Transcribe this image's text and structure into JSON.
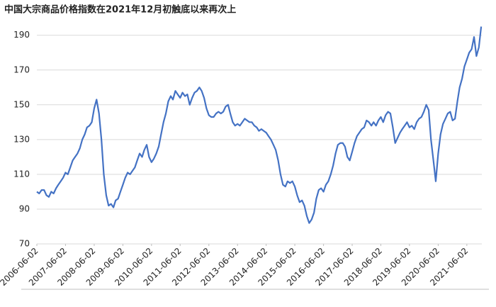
{
  "chart_data": {
    "type": "line",
    "title": "中国大宗商品价格指数在2021年12月初触底以来再次上",
    "x": [
      "2006-06-02",
      "2006-07-02",
      "2006-08-02",
      "2006-09-02",
      "2006-10-02",
      "2006-11-02",
      "2006-12-02",
      "2007-01-02",
      "2007-02-02",
      "2007-03-02",
      "2007-04-02",
      "2007-05-02",
      "2007-06-02",
      "2007-07-02",
      "2007-08-02",
      "2007-09-02",
      "2007-10-02",
      "2007-11-02",
      "2007-12-02",
      "2008-01-02",
      "2008-02-02",
      "2008-03-02",
      "2008-04-02",
      "2008-05-02",
      "2008-06-02",
      "2008-07-02",
      "2008-08-02",
      "2008-09-02",
      "2008-10-02",
      "2008-11-02",
      "2008-12-02",
      "2009-01-02",
      "2009-02-02",
      "2009-03-02",
      "2009-04-02",
      "2009-05-02",
      "2009-06-02",
      "2009-07-02",
      "2009-08-02",
      "2009-09-02",
      "2009-10-02",
      "2009-11-02",
      "2009-12-02",
      "2010-01-02",
      "2010-02-02",
      "2010-03-02",
      "2010-04-02",
      "2010-05-02",
      "2010-06-02",
      "2010-07-02",
      "2010-08-02",
      "2010-09-02",
      "2010-10-02",
      "2010-11-02",
      "2010-12-02",
      "2011-01-02",
      "2011-02-02",
      "2011-03-02",
      "2011-04-02",
      "2011-05-02",
      "2011-06-02",
      "2011-07-02",
      "2011-08-02",
      "2011-09-02",
      "2011-10-02",
      "2011-11-02",
      "2011-12-02",
      "2012-01-02",
      "2012-02-02",
      "2012-03-02",
      "2012-04-02",
      "2012-05-02",
      "2012-06-02",
      "2012-07-02",
      "2012-08-02",
      "2012-09-02",
      "2012-10-02",
      "2012-11-02",
      "2012-12-02",
      "2013-01-02",
      "2013-02-02",
      "2013-03-02",
      "2013-04-02",
      "2013-05-02",
      "2013-06-02",
      "2013-07-02",
      "2013-08-02",
      "2013-09-02",
      "2013-10-02",
      "2013-11-02",
      "2013-12-02",
      "2014-01-02",
      "2014-02-02",
      "2014-03-02",
      "2014-04-02",
      "2014-05-02",
      "2014-06-02",
      "2014-07-02",
      "2014-08-02",
      "2014-09-02",
      "2014-10-02",
      "2014-11-02",
      "2014-12-02",
      "2015-01-02",
      "2015-02-02",
      "2015-03-02",
      "2015-04-02",
      "2015-05-02",
      "2015-06-02",
      "2015-07-02",
      "2015-08-02",
      "2015-09-02",
      "2015-10-02",
      "2015-11-02",
      "2015-12-02",
      "2016-01-02",
      "2016-02-02",
      "2016-03-02",
      "2016-04-02",
      "2016-05-02",
      "2016-06-02",
      "2016-07-02",
      "2016-08-02",
      "2016-09-02",
      "2016-10-02",
      "2016-11-02",
      "2016-12-02",
      "2017-01-02",
      "2017-02-02",
      "2017-03-02",
      "2017-04-02",
      "2017-05-02",
      "2017-06-02",
      "2017-07-02",
      "2017-08-02",
      "2017-09-02",
      "2017-10-02",
      "2017-11-02",
      "2017-12-02",
      "2018-01-02",
      "2018-02-02",
      "2018-03-02",
      "2018-04-02",
      "2018-05-02",
      "2018-06-02",
      "2018-07-02",
      "2018-08-02",
      "2018-09-02",
      "2018-10-02",
      "2018-11-02",
      "2018-12-02",
      "2019-01-02",
      "2019-02-02",
      "2019-03-02",
      "2019-04-02",
      "2019-05-02",
      "2019-06-02",
      "2019-07-02",
      "2019-08-02",
      "2019-09-02",
      "2019-10-02",
      "2019-11-02",
      "2019-12-02",
      "2020-01-02",
      "2020-02-02",
      "2020-03-02",
      "2020-04-02",
      "2020-05-02",
      "2020-06-02",
      "2020-07-02",
      "2020-08-02",
      "2020-09-02",
      "2020-10-02",
      "2020-11-02",
      "2020-12-02",
      "2021-01-02",
      "2021-02-02",
      "2021-03-02",
      "2021-04-02",
      "2021-05-02",
      "2021-06-02",
      "2021-07-02",
      "2021-08-02",
      "2021-09-02",
      "2021-10-02",
      "2021-11-02",
      "2021-12-02"
    ],
    "series": [
      {
        "color": "#4472c4",
        "values": [
          100,
          99,
          101,
          101,
          98,
          97,
          100,
          99,
          102,
          104,
          106,
          108,
          111,
          110,
          114,
          118,
          120,
          122,
          125,
          130,
          133,
          137,
          138,
          140,
          148,
          153,
          145,
          130,
          110,
          98,
          92,
          93,
          91,
          95,
          96,
          100,
          104,
          108,
          111,
          110,
          112,
          114,
          118,
          122,
          120,
          124,
          127,
          120,
          117,
          119,
          122,
          126,
          133,
          140,
          145,
          152,
          155,
          153,
          158,
          156,
          154,
          157,
          155,
          156,
          150,
          154,
          157,
          158,
          160,
          158,
          154,
          148,
          144,
          143,
          143,
          145,
          146,
          145,
          146,
          149,
          150,
          145,
          140,
          138,
          139,
          138,
          140,
          142,
          141,
          140,
          140,
          138,
          137,
          135,
          136,
          135,
          134,
          132,
          130,
          127,
          124,
          118,
          110,
          104,
          103,
          106,
          105,
          106,
          103,
          98,
          94,
          95,
          92,
          86,
          82,
          84,
          88,
          96,
          101,
          102,
          100,
          104,
          106,
          110,
          115,
          122,
          127,
          128,
          128,
          126,
          120,
          118,
          123,
          128,
          132,
          134,
          136,
          137,
          141,
          140,
          138,
          140,
          138,
          141,
          143,
          140,
          144,
          146,
          145,
          137,
          128,
          131,
          134,
          136,
          138,
          140,
          137,
          138,
          136,
          140,
          142,
          143,
          146,
          150,
          147,
          130,
          118,
          106,
          122,
          133,
          139,
          142,
          145,
          146,
          141,
          142,
          152,
          160,
          165,
          172,
          176,
          180,
          182,
          189,
          178,
          183,
          195
        ]
      }
    ],
    "xlim": [
      "2006-06-02",
      "2021-12-10"
    ],
    "xticks": [
      "2006-06-02",
      "2007-06-02",
      "2008-06-02",
      "2009-06-02",
      "2010-06-02",
      "2011-06-02",
      "2012-06-02",
      "2013-06-02",
      "2014-06-02",
      "2015-06-02",
      "2016-06-02",
      "2017-06-02",
      "2018-06-02",
      "2019-06-02",
      "2020-06-02",
      "2021-06-02"
    ],
    "ylim": [
      70,
      196
    ],
    "yticks": [
      70,
      90,
      110,
      130,
      150,
      170,
      190
    ],
    "grid": true
  }
}
